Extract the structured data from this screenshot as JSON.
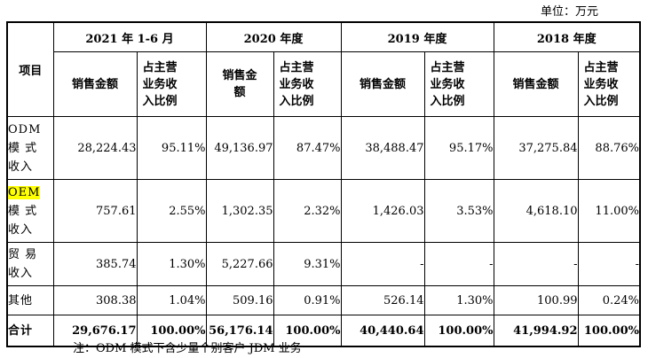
{
  "unit": "单位：万元",
  "headers": {
    "item": "项目",
    "years": [
      "2021 年 1-6 月",
      "2020 年度",
      "2019 年度",
      "2018 年度"
    ],
    "sales": [
      "销售金额",
      "销售金额",
      "销售金额",
      "销售金额"
    ],
    "sales_2020_l1": "销售金",
    "sales_2020_l2": "额",
    "ratio_l1": "占主营",
    "ratio_l2": "业务收",
    "ratio_l3": "入比例"
  },
  "rows": [
    {
      "label_l1": "ODM",
      "label_l2": "模 式",
      "label_l3": "收入",
      "values": [
        "28,224.43",
        "95.11%",
        "49,136.97",
        "87.47%",
        "38,488.47",
        "95.17%",
        "37,275.84",
        "88.76%"
      ]
    },
    {
      "label_l1": "OEM",
      "label_l2": "模 式",
      "label_l3": "收入",
      "values": [
        "757.61",
        "2.55%",
        "1,302.35",
        "2.32%",
        "1,426.03",
        "3.53%",
        "4,618.10",
        "11.00%"
      ]
    },
    {
      "label_l1": "贸 易",
      "label_l2": "收入",
      "values": [
        "385.74",
        "1.30%",
        "5,227.66",
        "9.31%",
        "-",
        "-",
        "-",
        "-"
      ]
    },
    {
      "label_l1": "其他",
      "values": [
        "308.38",
        "1.04%",
        "509.16",
        "0.91%",
        "526.14",
        "1.30%",
        "100.99",
        "0.24%"
      ]
    },
    {
      "label_l1": "合计",
      "values": [
        "29,676.17",
        "100.00%",
        "56,176.14",
        "100.00%",
        "40,440.64",
        "100.00%",
        "41,994.92",
        "100.00%"
      ]
    }
  ],
  "note": "注：ODM 模式下含少量个别客户 JDM 业务",
  "highlight_color": "#ffff00"
}
